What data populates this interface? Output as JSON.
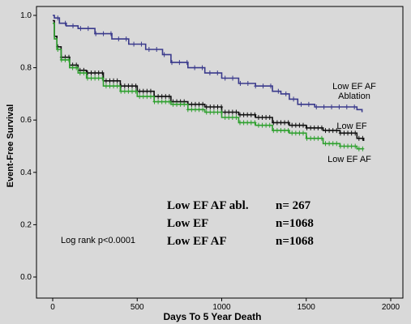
{
  "chart_data": {
    "type": "line",
    "title": "",
    "xlabel": "Days To 5 Year Death",
    "ylabel": "Event-Free Survival",
    "xlim": [
      0,
      2000
    ],
    "ylim": [
      0.0,
      1.0
    ],
    "x_ticks": [
      0,
      500,
      1000,
      1500,
      2000
    ],
    "y_ticks": [
      "0.0",
      "0.2",
      "0.4",
      "0.6",
      "0.8",
      "1.0"
    ],
    "grid": false,
    "series": [
      {
        "name": "Low EF AF Ablation",
        "label_lines": [
          "Low EF AF",
          "Ablation"
        ],
        "color": "#3a3a8c",
        "points": [
          [
            0,
            1.0
          ],
          [
            10,
            0.99
          ],
          [
            40,
            0.97
          ],
          [
            80,
            0.96
          ],
          [
            150,
            0.95
          ],
          [
            250,
            0.93
          ],
          [
            350,
            0.91
          ],
          [
            450,
            0.89
          ],
          [
            550,
            0.87
          ],
          [
            650,
            0.85
          ],
          [
            700,
            0.82
          ],
          [
            800,
            0.8
          ],
          [
            900,
            0.78
          ],
          [
            1000,
            0.76
          ],
          [
            1100,
            0.74
          ],
          [
            1200,
            0.73
          ],
          [
            1300,
            0.71
          ],
          [
            1350,
            0.7
          ],
          [
            1400,
            0.68
          ],
          [
            1450,
            0.66
          ],
          [
            1550,
            0.65
          ],
          [
            1650,
            0.65
          ],
          [
            1750,
            0.65
          ],
          [
            1800,
            0.64
          ],
          [
            1830,
            0.63
          ]
        ]
      },
      {
        "name": "Low EF",
        "label_lines": [
          "Low EF"
        ],
        "color": "#111111",
        "points": [
          [
            0,
            0.98
          ],
          [
            10,
            0.92
          ],
          [
            25,
            0.88
          ],
          [
            50,
            0.84
          ],
          [
            100,
            0.81
          ],
          [
            150,
            0.79
          ],
          [
            200,
            0.78
          ],
          [
            300,
            0.75
          ],
          [
            400,
            0.73
          ],
          [
            500,
            0.71
          ],
          [
            600,
            0.69
          ],
          [
            700,
            0.67
          ],
          [
            800,
            0.66
          ],
          [
            900,
            0.65
          ],
          [
            1000,
            0.63
          ],
          [
            1100,
            0.62
          ],
          [
            1200,
            0.61
          ],
          [
            1300,
            0.59
          ],
          [
            1400,
            0.58
          ],
          [
            1500,
            0.57
          ],
          [
            1600,
            0.56
          ],
          [
            1700,
            0.55
          ],
          [
            1800,
            0.53
          ],
          [
            1840,
            0.52
          ]
        ]
      },
      {
        "name": "Low EF AF",
        "label_lines": [
          "Low EF AF"
        ],
        "color": "#2ea02e",
        "points": [
          [
            0,
            0.97
          ],
          [
            10,
            0.91
          ],
          [
            25,
            0.87
          ],
          [
            50,
            0.83
          ],
          [
            100,
            0.8
          ],
          [
            150,
            0.78
          ],
          [
            200,
            0.76
          ],
          [
            300,
            0.73
          ],
          [
            400,
            0.71
          ],
          [
            500,
            0.69
          ],
          [
            600,
            0.67
          ],
          [
            700,
            0.66
          ],
          [
            800,
            0.64
          ],
          [
            900,
            0.63
          ],
          [
            1000,
            0.61
          ],
          [
            1100,
            0.59
          ],
          [
            1200,
            0.58
          ],
          [
            1300,
            0.56
          ],
          [
            1400,
            0.55
          ],
          [
            1500,
            0.53
          ],
          [
            1600,
            0.51
          ],
          [
            1700,
            0.5
          ],
          [
            1800,
            0.49
          ],
          [
            1840,
            0.49
          ]
        ]
      }
    ],
    "annotations": {
      "log_rank": "Log rank p<0.0001",
      "n_list": [
        {
          "label": "Low EF AF abl.",
          "n": "n= 267"
        },
        {
          "label": "Low EF",
          "n": "n=1068"
        },
        {
          "label": "Low EF AF",
          "n": "n=1068"
        }
      ]
    }
  }
}
